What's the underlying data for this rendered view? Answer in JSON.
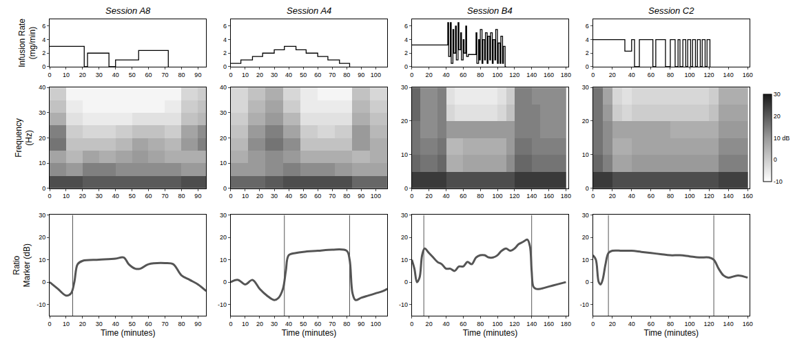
{
  "chart_data": [
    {
      "type": "line",
      "title": "Session A8",
      "ylabel": [
        "Infusion Rate",
        "(mg/min)"
      ],
      "line_style": "step",
      "color": "#000000",
      "x": [
        0,
        21,
        23,
        36,
        40,
        54,
        72
      ],
      "values": [
        3,
        0,
        2,
        0,
        1,
        2.4,
        0
      ],
      "xlim": [
        0,
        95
      ],
      "xticks": [
        0,
        10,
        20,
        30,
        40,
        50,
        60,
        70,
        80,
        90
      ],
      "ylim": [
        0,
        7
      ],
      "yticks": [
        0,
        2,
        4,
        6
      ]
    },
    {
      "type": "line",
      "title": "Session A4",
      "line_style": "step",
      "color": "#000000",
      "x": [
        0,
        7,
        15,
        22,
        30,
        37,
        45,
        52,
        60,
        67,
        75,
        82
      ],
      "values": [
        0.5,
        1,
        1.5,
        2,
        2.5,
        3,
        2.5,
        2,
        1.5,
        1,
        0.5,
        0
      ],
      "xlim": [
        0,
        108
      ],
      "xticks": [
        0,
        10,
        20,
        30,
        40,
        50,
        60,
        70,
        80,
        90,
        100
      ],
      "ylim": [
        0,
        7
      ],
      "yticks": [
        0,
        2,
        4,
        6
      ]
    },
    {
      "type": "line",
      "title": "Session B4",
      "line_style": "step",
      "color": "#000000",
      "x": [
        0,
        42,
        43,
        45,
        46,
        48,
        49,
        51,
        52,
        54,
        55,
        57,
        58,
        60,
        61,
        63,
        64,
        66,
        75,
        76,
        78,
        79,
        80,
        82,
        83,
        85,
        86,
        88,
        89,
        91,
        92,
        94,
        95,
        97,
        98,
        100,
        101,
        103,
        104,
        106,
        107,
        109,
        110
      ],
      "values": [
        3.2,
        6.5,
        1.5,
        6.5,
        0.5,
        5.5,
        2,
        6,
        1,
        6.5,
        2.5,
        5,
        1,
        4,
        2,
        6,
        1.5,
        1.8,
        5,
        0.5,
        4,
        1,
        5.5,
        0.5,
        4,
        1,
        5,
        0.5,
        4.5,
        1,
        5,
        0.5,
        4,
        1,
        5.5,
        0.5,
        3.5,
        0.5,
        4.5,
        0.5,
        3,
        0,
        0
      ],
      "xlim": [
        0,
        183
      ],
      "xticks": [
        0,
        20,
        40,
        60,
        80,
        100,
        120,
        140,
        160,
        180
      ],
      "ylim": [
        0,
        7
      ],
      "yticks": [
        0,
        2,
        4,
        6
      ]
    },
    {
      "type": "line",
      "title": "Session C2",
      "line_style": "step",
      "color": "#000000",
      "x": [
        0,
        33,
        40,
        43,
        48,
        62,
        65,
        75,
        80,
        85,
        88,
        90,
        93,
        96,
        98,
        101,
        103,
        106,
        108,
        111,
        113,
        116,
        118,
        121
      ],
      "values": [
        4,
        2.3,
        4,
        0,
        4,
        0,
        4,
        0,
        4,
        0,
        4,
        0,
        4,
        0,
        4,
        0,
        4,
        0,
        4,
        0,
        4,
        0,
        4,
        0
      ],
      "xlim": [
        0,
        162
      ],
      "xticks": [
        0,
        20,
        40,
        60,
        80,
        100,
        120,
        140,
        160
      ],
      "ylim": [
        0,
        7
      ],
      "yticks": [
        0,
        2,
        4,
        6
      ]
    },
    {
      "type": "heatmap",
      "ylabel": [
        "Frequency",
        "(Hz)"
      ],
      "x": [
        5,
        15,
        25,
        35,
        45,
        55,
        65,
        75,
        85,
        95
      ],
      "y": [
        2.5,
        7.5,
        12.5,
        17.5,
        22.5,
        27.5,
        32.5,
        37.5
      ],
      "z": [
        [
          22,
          22,
          20,
          20,
          20,
          20,
          20,
          20,
          22,
          22
        ],
        [
          12,
          10,
          14,
          14,
          12,
          12,
          12,
          12,
          10,
          10
        ],
        [
          8,
          4,
          8,
          6,
          8,
          10,
          8,
          6,
          6,
          6
        ],
        [
          16,
          2,
          2,
          2,
          4,
          8,
          6,
          4,
          10,
          14
        ],
        [
          14,
          0,
          -2,
          -2,
          0,
          2,
          2,
          0,
          8,
          12
        ],
        [
          6,
          -4,
          -6,
          -6,
          -6,
          -4,
          -4,
          -4,
          2,
          4
        ],
        [
          2,
          -6,
          -8,
          -8,
          -8,
          -8,
          -8,
          -6,
          0,
          2
        ],
        [
          0,
          -8,
          -8,
          -8,
          -8,
          -8,
          -8,
          -8,
          -2,
          0
        ]
      ],
      "colorbar_range": [
        -10,
        30
      ],
      "xlim": [
        0,
        95
      ],
      "xticks": [
        0,
        10,
        20,
        30,
        40,
        50,
        60,
        70,
        80,
        90
      ],
      "ylim": [
        0,
        40
      ],
      "yticks": [
        0,
        10,
        20,
        30,
        40
      ]
    },
    {
      "type": "heatmap",
      "x": [
        6,
        18,
        30,
        42,
        54,
        66,
        78,
        90,
        102
      ],
      "y": [
        2.5,
        7.5,
        12.5,
        17.5,
        22.5,
        27.5,
        32.5,
        37.5
      ],
      "z": [
        [
          18,
          18,
          20,
          22,
          22,
          22,
          22,
          18,
          18
        ],
        [
          10,
          10,
          12,
          14,
          12,
          12,
          10,
          8,
          8
        ],
        [
          6,
          10,
          12,
          10,
          6,
          6,
          6,
          4,
          6
        ],
        [
          4,
          12,
          16,
          12,
          2,
          2,
          2,
          10,
          6
        ],
        [
          2,
          10,
          14,
          8,
          0,
          -2,
          0,
          10,
          4
        ],
        [
          0,
          6,
          10,
          4,
          -4,
          -4,
          -4,
          6,
          2
        ],
        [
          -2,
          4,
          8,
          0,
          -6,
          -6,
          -6,
          4,
          0
        ],
        [
          -2,
          2,
          6,
          -2,
          -6,
          -8,
          -8,
          2,
          -2
        ]
      ],
      "colorbar_range": [
        -10,
        30
      ],
      "xlim": [
        0,
        108
      ],
      "xticks": [
        0,
        10,
        20,
        30,
        40,
        50,
        60,
        70,
        80,
        90,
        100
      ],
      "ylim": [
        0,
        40
      ],
      "yticks": [
        0,
        10,
        20,
        30,
        40
      ]
    },
    {
      "type": "heatmap",
      "x": [
        5,
        15,
        25,
        35,
        45,
        55,
        65,
        75,
        85,
        95,
        105,
        115,
        125,
        135,
        145,
        155,
        165,
        175
      ],
      "y": [
        2.5,
        7.5,
        12.5,
        17.5,
        22.5,
        27.5
      ],
      "z": [
        [
          25,
          25,
          25,
          25,
          22,
          22,
          22,
          22,
          22,
          22,
          22,
          22,
          25,
          25,
          25,
          25,
          25,
          25
        ],
        [
          18,
          16,
          16,
          18,
          6,
          6,
          8,
          8,
          8,
          8,
          8,
          12,
          18,
          18,
          16,
          16,
          16,
          16
        ],
        [
          16,
          14,
          14,
          16,
          4,
          4,
          6,
          6,
          6,
          6,
          6,
          10,
          16,
          16,
          14,
          14,
          14,
          14
        ],
        [
          16,
          12,
          12,
          14,
          10,
          10,
          10,
          10,
          10,
          10,
          10,
          10,
          14,
          14,
          14,
          12,
          12,
          12
        ],
        [
          18,
          12,
          12,
          14,
          -2,
          -4,
          -4,
          -4,
          -4,
          -4,
          -2,
          2,
          14,
          14,
          14,
          12,
          12,
          12
        ],
        [
          18,
          12,
          12,
          14,
          -4,
          -6,
          -6,
          -6,
          -6,
          -6,
          -4,
          0,
          14,
          14,
          12,
          12,
          12,
          12
        ]
      ],
      "colorbar_range": [
        -10,
        30
      ],
      "xlim": [
        0,
        183
      ],
      "xticks": [
        0,
        20,
        40,
        60,
        80,
        100,
        120,
        140,
        160,
        180
      ],
      "ylim": [
        0,
        30
      ],
      "yticks": [
        0,
        10,
        20,
        30
      ]
    },
    {
      "type": "heatmap",
      "x": [
        5,
        15,
        25,
        35,
        45,
        55,
        65,
        75,
        85,
        95,
        105,
        115,
        125,
        135,
        145,
        155
      ],
      "y": [
        2.5,
        7.5,
        12.5,
        17.5,
        22.5,
        27.5
      ],
      "z": [
        [
          25,
          25,
          22,
          22,
          22,
          22,
          22,
          22,
          22,
          22,
          22,
          22,
          22,
          24,
          24,
          24
        ],
        [
          18,
          14,
          8,
          8,
          10,
          10,
          10,
          10,
          10,
          10,
          10,
          10,
          10,
          14,
          14,
          14
        ],
        [
          16,
          12,
          6,
          6,
          8,
          8,
          8,
          8,
          8,
          8,
          8,
          8,
          8,
          12,
          12,
          12
        ],
        [
          16,
          12,
          8,
          8,
          8,
          8,
          8,
          8,
          6,
          6,
          6,
          6,
          6,
          10,
          10,
          10
        ],
        [
          16,
          10,
          0,
          -2,
          0,
          0,
          0,
          0,
          0,
          0,
          0,
          0,
          2,
          8,
          8,
          8
        ],
        [
          16,
          8,
          -2,
          -4,
          -2,
          -2,
          -2,
          -2,
          -2,
          -2,
          -2,
          -2,
          0,
          6,
          6,
          6
        ]
      ],
      "colorbar_range": [
        -10,
        30
      ],
      "colorbar_ticks": [
        -10,
        0,
        {
          "value": 10,
          "label": "10 dB"
        },
        20,
        30
      ],
      "xlim": [
        0,
        162
      ],
      "xticks": [
        0,
        20,
        40,
        60,
        80,
        100,
        120,
        140,
        160
      ],
      "ylim": [
        0,
        30
      ],
      "yticks": [
        0,
        10,
        20,
        30
      ]
    },
    {
      "type": "line",
      "ylabel": [
        "Ratio",
        "Marker (dB)"
      ],
      "xlabel": "Time (minutes)",
      "line_style": "solid",
      "color": "#555555",
      "x": [
        0,
        5,
        10,
        13,
        15,
        17,
        20,
        30,
        40,
        45,
        48,
        52,
        55,
        60,
        70,
        75,
        80,
        85,
        90,
        95
      ],
      "values": [
        0,
        -3,
        -6,
        -5,
        0,
        8,
        9.5,
        10,
        10.5,
        11,
        8,
        6,
        6,
        8,
        8.5,
        8,
        3,
        1,
        -1,
        -4
      ],
      "vlines": [
        14
      ],
      "xlim": [
        0,
        95
      ],
      "xticks": [
        0,
        10,
        20,
        30,
        40,
        50,
        60,
        70,
        80,
        90
      ],
      "ylim": [
        -15,
        30
      ],
      "yticks": [
        -10,
        0,
        10,
        20,
        30
      ]
    },
    {
      "type": "line",
      "xlabel": "Time (minutes)",
      "line_style": "solid",
      "color": "#555555",
      "x": [
        0,
        5,
        10,
        15,
        20,
        25,
        30,
        33,
        36,
        38,
        40,
        45,
        50,
        60,
        70,
        80,
        82,
        84,
        86,
        90,
        95,
        100,
        105,
        108
      ],
      "values": [
        0,
        1,
        -1,
        1,
        -3,
        -6,
        -8,
        -7,
        -3,
        5,
        12,
        13,
        13.5,
        14,
        14.5,
        14,
        10,
        -5,
        -8,
        -7,
        -6,
        -5,
        -4,
        -3
      ],
      "vlines": [
        37,
        82
      ],
      "xlim": [
        0,
        108
      ],
      "xticks": [
        0,
        10,
        20,
        30,
        40,
        50,
        60,
        70,
        80,
        90,
        100
      ],
      "ylim": [
        -15,
        30
      ],
      "yticks": [
        -10,
        0,
        10,
        20,
        30
      ]
    },
    {
      "type": "line",
      "xlabel": "Time (minutes)",
      "line_style": "solid",
      "color": "#555555",
      "x": [
        0,
        3,
        6,
        9,
        12,
        15,
        20,
        25,
        30,
        35,
        40,
        45,
        50,
        55,
        60,
        65,
        70,
        75,
        80,
        85,
        90,
        95,
        100,
        105,
        110,
        115,
        120,
        125,
        130,
        135,
        138,
        140,
        142,
        145,
        150,
        160,
        170,
        180
      ],
      "values": [
        10,
        6,
        0,
        2,
        12,
        15,
        13,
        11,
        9,
        8,
        6,
        6,
        5,
        7,
        7,
        9,
        8,
        11,
        12,
        12,
        11,
        11,
        12,
        14,
        15,
        14,
        15,
        17,
        18,
        19,
        16,
        5,
        -2,
        -3,
        -3,
        -2,
        -1,
        0
      ],
      "vlines": [
        14,
        140
      ],
      "xlim": [
        0,
        183
      ],
      "xticks": [
        0,
        20,
        40,
        60,
        80,
        100,
        120,
        140,
        160,
        180
      ],
      "ylim": [
        -15,
        30
      ],
      "yticks": [
        -10,
        0,
        10,
        20,
        30
      ]
    },
    {
      "type": "line",
      "xlabel": "Time (minutes)",
      "line_style": "solid",
      "color": "#555555",
      "x": [
        0,
        3,
        6,
        8,
        10,
        13,
        16,
        20,
        30,
        40,
        50,
        60,
        70,
        80,
        90,
        100,
        110,
        120,
        125,
        130,
        135,
        140,
        150,
        160
      ],
      "values": [
        12,
        10,
        0,
        -1,
        1,
        8,
        13,
        14,
        14,
        14,
        13.5,
        13,
        12.5,
        12,
        12,
        11.5,
        11,
        11,
        10,
        6,
        3,
        2,
        3,
        2
      ],
      "vlines": [
        16,
        125
      ],
      "xlim": [
        0,
        162
      ],
      "xticks": [
        0,
        20,
        40,
        60,
        80,
        100,
        120,
        140,
        160
      ],
      "ylim": [
        -15,
        30
      ],
      "yticks": [
        -10,
        0,
        10,
        20,
        30
      ]
    }
  ]
}
